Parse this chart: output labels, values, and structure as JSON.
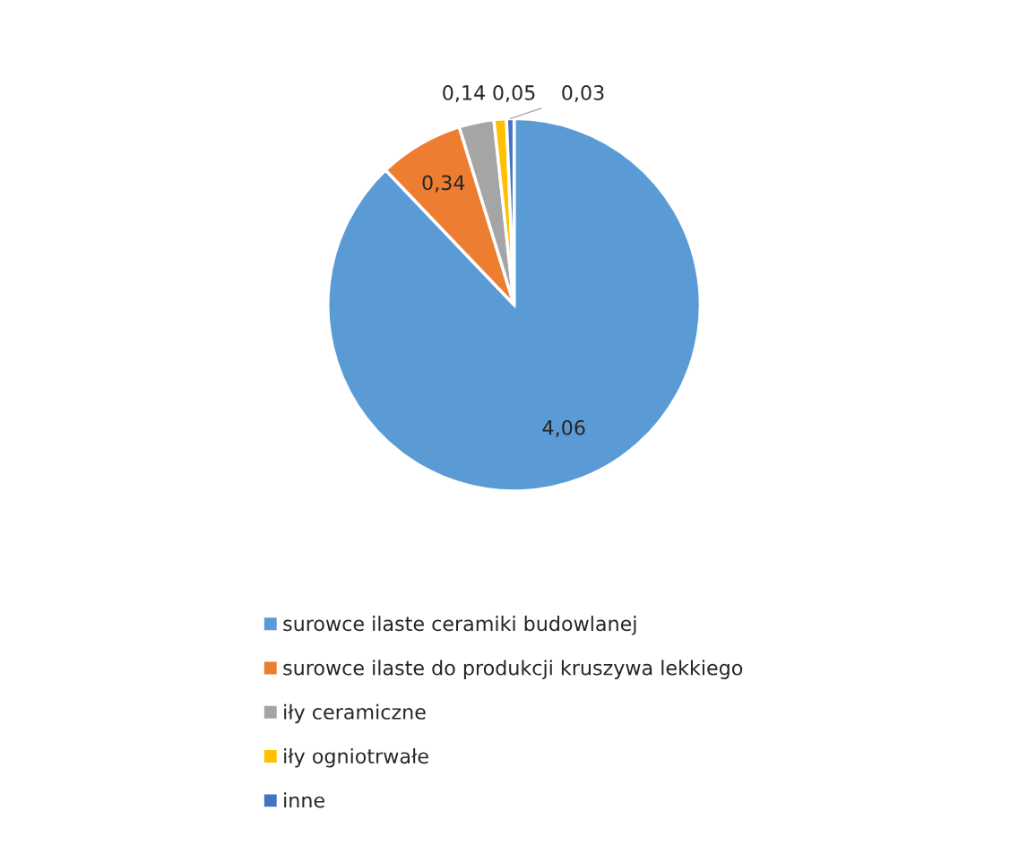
{
  "chart_data": {
    "type": "pie",
    "categories": [
      "surowce ilaste ceramiki budowlanej",
      "surowce ilaste do produkcji kruszywa lekkiego",
      "iły ceramiczne",
      "iły ogniotrwałe",
      "inne"
    ],
    "values": [
      4.06,
      0.34,
      0.14,
      0.05,
      0.03
    ],
    "colors": [
      "#5b9bd5",
      "#ed7d31",
      "#a5a5a5",
      "#ffc000",
      "#4472c4"
    ],
    "value_labels": [
      "4,06",
      "0,34",
      "0,14",
      "0,05",
      "0,03"
    ],
    "legend": "bottom"
  }
}
